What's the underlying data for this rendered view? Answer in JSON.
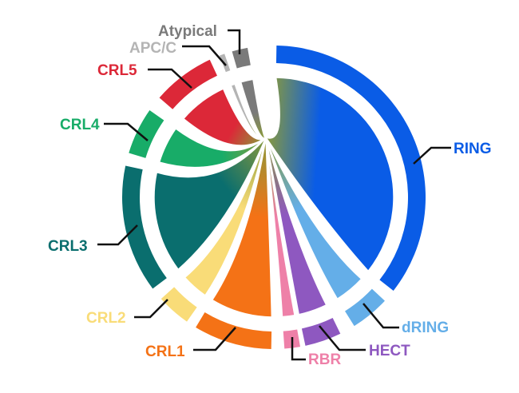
{
  "segments": [
    {
      "label": "RING",
      "color": "#0a5ce6"
    },
    {
      "label": "dRING",
      "color": "#64aee8"
    },
    {
      "label": "HECT",
      "color": "#8e58c0"
    },
    {
      "label": "RBR",
      "color": "#ee80a8"
    },
    {
      "label": "CRL1",
      "color": "#f47216"
    },
    {
      "label": "CRL2",
      "color": "#f9dc78"
    },
    {
      "label": "CRL3",
      "color": "#0a6e6e"
    },
    {
      "label": "CRL4",
      "color": "#18ac68"
    },
    {
      "label": "CRL5",
      "color": "#dc2838"
    },
    {
      "label": "APC/C",
      "color": "#b4b4b4"
    },
    {
      "label": "Atypical",
      "color": "#7a7a7a"
    }
  ],
  "hub_color": "#8a9a3a"
}
